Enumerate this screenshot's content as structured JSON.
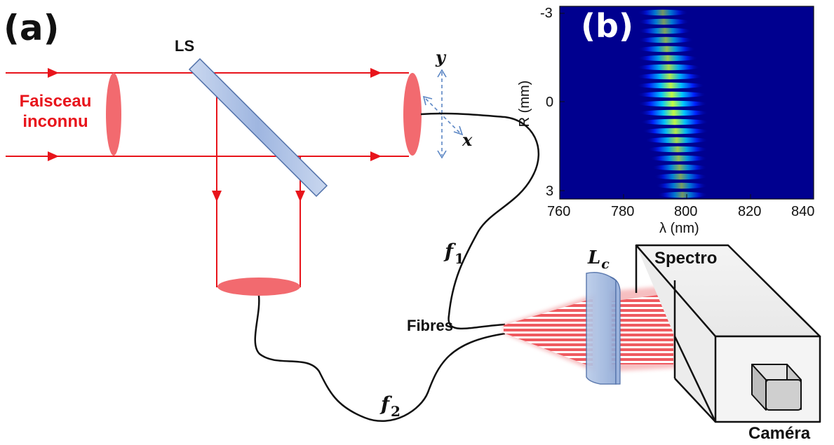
{
  "panel_a": {
    "label": "(a)",
    "beam_label_line1": "Faisceau",
    "beam_label_line2": "inconnu",
    "splitter_label": "LS",
    "axis_y": "y",
    "axis_x": "x",
    "fiber1_label_main": "f",
    "fiber1_label_sub": "1",
    "fiber2_label_main": "f",
    "fiber2_label_sub": "2",
    "fibres_label": "Fibres",
    "lens_label_main": "L",
    "lens_label_sub": "c",
    "spectro_label": "Spectro",
    "camera_label": "Caméra"
  },
  "panel_b": {
    "label": "(b)",
    "ylabel": "R (mm)",
    "xlabel": "λ (nm)",
    "y_ticks": [
      "-3",
      "0",
      "3"
    ],
    "x_ticks": [
      "760",
      "780",
      "800",
      "820",
      "840"
    ]
  },
  "colors": {
    "beam": "#e8141b",
    "lens": "#f26a6f",
    "splitter": "#a9bfe4",
    "heatmap_background": "#00008f",
    "fringe": "#f5f000"
  }
}
